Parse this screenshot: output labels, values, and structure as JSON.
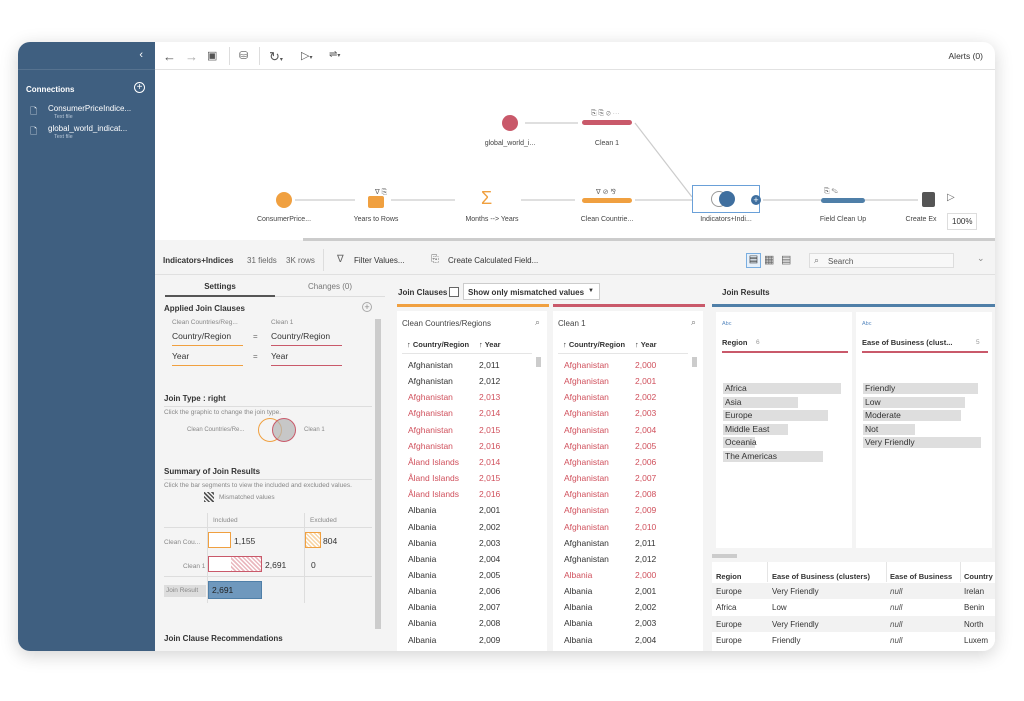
{
  "sidebar": {
    "title": "Connections",
    "items": [
      {
        "name": "ConsumerPriceIndice...",
        "type": "Text file"
      },
      {
        "name": "global_world_indicat...",
        "type": "Text file"
      }
    ]
  },
  "toolbar": {
    "alerts": "Alerts (0)"
  },
  "flow": {
    "nodes": [
      "global_world_i...",
      "Clean 1",
      "ConsumerPrice...",
      "Years to Rows",
      "Months --> Years",
      "Clean Countrie...",
      "Indicators+Indi...",
      "Field Clean Up",
      "Create Ex"
    ],
    "zoom": "100%"
  },
  "step": {
    "name": "Indicators+Indices",
    "fields": "31 fields",
    "rows": "3K rows",
    "filter": "Filter Values...",
    "calc": "Create Calculated Field...",
    "search_placeholder": "Search"
  },
  "settings": {
    "tabs": [
      "Settings",
      "Changes (0)"
    ],
    "applied_title": "Applied Join Clauses",
    "left_src": "Clean Countries/Reg...",
    "right_src": "Clean 1",
    "clauses": [
      {
        "l": "Country/Region",
        "r": "Country/Region"
      },
      {
        "l": "Year",
        "r": "Year"
      }
    ],
    "eq": "=",
    "join_type": "Join Type : right",
    "join_hint": "Click the graphic to change the join type.",
    "venn_left": "Clean Countries/Re...",
    "venn_right": "Clean 1",
    "summary_title": "Summary of Join Results",
    "summary_hint": "Click the bar segments to view the included and excluded values.",
    "mismatched": "Mismatched values",
    "included": "Included",
    "excluded": "Excluded",
    "r1": "Clean Cou...",
    "r1_inc": "1,155",
    "r1_exc": "804",
    "r2": "Clean 1",
    "r2_inc": "2,691",
    "r2_exc": "0",
    "result_label": "Join Result",
    "result": "2,691",
    "recs": "Join Clause Recommendations"
  },
  "clauses_bar": {
    "label": "Join Clauses",
    "dropdown": "Show only mismatched values"
  },
  "left_table": {
    "title": "Clean Countries/Regions",
    "cols": [
      "↑ Country/Region",
      "↑ Year"
    ],
    "rows": [
      [
        "Afghanistan",
        "2,011",
        0
      ],
      [
        "Afghanistan",
        "2,012",
        0
      ],
      [
        "Afghanistan",
        "2,013",
        1
      ],
      [
        "Afghanistan",
        "2,014",
        1
      ],
      [
        "Afghanistan",
        "2,015",
        1
      ],
      [
        "Afghanistan",
        "2,016",
        1
      ],
      [
        "Åland Islands",
        "2,014",
        1
      ],
      [
        "Åland Islands",
        "2,015",
        1
      ],
      [
        "Åland Islands",
        "2,016",
        1
      ],
      [
        "Albania",
        "2,001",
        0
      ],
      [
        "Albania",
        "2,002",
        0
      ],
      [
        "Albania",
        "2,003",
        0
      ],
      [
        "Albania",
        "2,004",
        0
      ],
      [
        "Albania",
        "2,005",
        0
      ],
      [
        "Albania",
        "2,006",
        0
      ],
      [
        "Albania",
        "2,007",
        0
      ],
      [
        "Albania",
        "2,008",
        0
      ],
      [
        "Albania",
        "2,009",
        0
      ]
    ]
  },
  "right_table": {
    "title": "Clean 1",
    "cols": [
      "↑ Country/Region",
      "↑ Year"
    ],
    "rows": [
      [
        "Afghanistan",
        "2,000",
        1
      ],
      [
        "Afghanistan",
        "2,001",
        1
      ],
      [
        "Afghanistan",
        "2,002",
        1
      ],
      [
        "Afghanistan",
        "2,003",
        1
      ],
      [
        "Afghanistan",
        "2,004",
        1
      ],
      [
        "Afghanistan",
        "2,005",
        1
      ],
      [
        "Afghanistan",
        "2,006",
        1
      ],
      [
        "Afghanistan",
        "2,007",
        1
      ],
      [
        "Afghanistan",
        "2,008",
        1
      ],
      [
        "Afghanistan",
        "2,009",
        1
      ],
      [
        "Afghanistan",
        "2,010",
        1
      ],
      [
        "Afghanistan",
        "2,011",
        0
      ],
      [
        "Afghanistan",
        "2,012",
        0
      ],
      [
        "Albania",
        "2,000",
        1
      ],
      [
        "Albania",
        "2,001",
        0
      ],
      [
        "Albania",
        "2,002",
        0
      ],
      [
        "Albania",
        "2,003",
        0
      ],
      [
        "Albania",
        "2,004",
        0
      ]
    ]
  },
  "results": {
    "title": "Join Results",
    "cards": [
      {
        "type": "Abc",
        "name": "Region",
        "count": "6",
        "values": [
          "Africa",
          "Asia",
          "Europe",
          "Middle East",
          "Oceania",
          "The Americas"
        ]
      },
      {
        "type": "Abc",
        "name": "Ease of Business (clust...",
        "count": "5",
        "values": [
          "Friendly",
          "Low",
          "Moderate",
          "Not Clustered",
          "Very Friendly"
        ]
      }
    ],
    "grid_cols": [
      "Region",
      "Ease of Business (clusters)",
      "Ease of Business",
      "Country"
    ],
    "grid_rows": [
      [
        "Europe",
        "Very Friendly",
        "null",
        "Irelan"
      ],
      [
        "Africa",
        "Low",
        "null",
        "Benin"
      ],
      [
        "Europe",
        "Very Friendly",
        "null",
        "North"
      ],
      [
        "Europe",
        "Friendly",
        "null",
        "Luxem"
      ]
    ]
  },
  "colors": {
    "sidebar": "#3f5f80",
    "orange": "#f0a040",
    "red": "#c9596a",
    "blue": "#4f7fa8"
  }
}
